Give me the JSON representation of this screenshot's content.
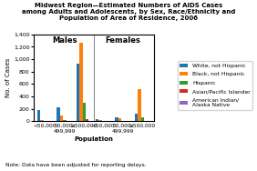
{
  "chart_data": {
    "type": "bar",
    "title": "Midwest Region—Estimated Numbers of AIDS Cases\namong Adults and Adolescents, by Sex, Race/Ethnicity and\nPopulation of Area of Residence, 2006",
    "x_label": "Population",
    "y_label": "No. of Cases",
    "categories": [
      "<50,000",
      "50,000-\n499,999",
      "≥500,000",
      "<50,000",
      "50,000-\n499,999",
      "≥500,000"
    ],
    "annotations": [
      "Males",
      "Females"
    ],
    "note": "Note: Data have been adjusted for reporting delays.",
    "series": [
      {
        "name": "White, not Hispanic",
        "values": [
          175,
          225,
          925,
          40,
          60,
          130
        ]
      },
      {
        "name": "Black, not Hispanic",
        "values": [
          25,
          100,
          1260,
          20,
          55,
          525
        ]
      },
      {
        "name": "Hispanic",
        "values": [
          10,
          25,
          305,
          5,
          10,
          60
        ]
      },
      {
        "name": "Asian/Pacific Islander",
        "values": [
          5,
          5,
          30,
          2,
          2,
          10
        ]
      },
      {
        "name": "American Indian/\nAlaska Native",
        "values": [
          5,
          10,
          10,
          5,
          5,
          8
        ]
      }
    ],
    "ylim": [
      0,
      1400
    ],
    "yticks": [
      0,
      200,
      400,
      600,
      800,
      {
        "value": 1000,
        "label": "1,000"
      },
      {
        "value": 1200,
        "label": "1,200"
      },
      {
        "value": 1400,
        "label": "1,400"
      }
    ],
    "grid": false,
    "legend": "right"
  }
}
